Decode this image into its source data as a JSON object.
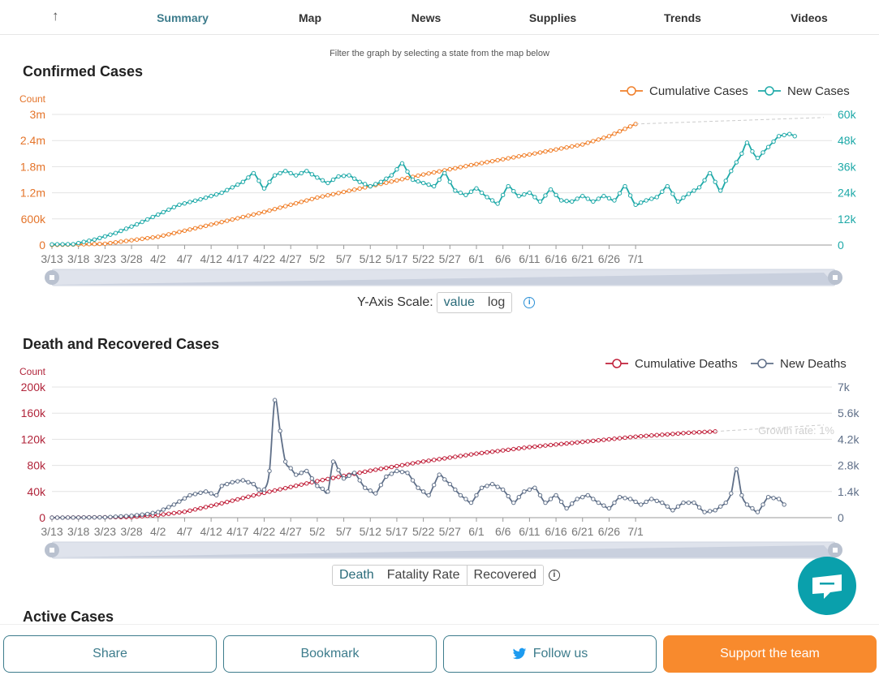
{
  "nav": {
    "back_icon": "arrow-up-icon",
    "tabs": [
      {
        "label": "Summary",
        "active": true
      },
      {
        "label": "Map",
        "active": false
      },
      {
        "label": "News",
        "active": false
      },
      {
        "label": "Supplies",
        "active": false
      },
      {
        "label": "Trends",
        "active": false
      },
      {
        "label": "Videos",
        "active": false
      }
    ]
  },
  "hint": "Filter the graph by selecting a state from the map below",
  "sections": {
    "confirmed_title": "Confirmed Cases",
    "death_title": "Death and Recovered Cases",
    "active_title": "Active Cases"
  },
  "controls": {
    "yscale_label": "Y-Axis Scale:",
    "yscale_options": [
      "value",
      "log"
    ],
    "yscale_selected": "value",
    "death_options": [
      "Death",
      "Fatality Rate",
      "Recovered"
    ],
    "death_selected": "Death"
  },
  "bottom": {
    "share": "Share",
    "bookmark": "Bookmark",
    "follow": "Follow us",
    "support": "Support the team"
  },
  "colors": {
    "cumulative_cases": "#f07f2a",
    "new_cases": "#1ea9a8",
    "cumulative_deaths": "#c0203a",
    "new_deaths": "#5f6f88",
    "accent": "#3d7c8c",
    "support": "#f88a2d"
  },
  "chart_data": [
    {
      "type": "line",
      "unit_label": "Count",
      "x_tick_labels": [
        "3/13",
        "3/18",
        "3/23",
        "3/28",
        "4/2",
        "4/7",
        "4/12",
        "4/17",
        "4/22",
        "4/27",
        "5/2",
        "5/7",
        "5/12",
        "5/17",
        "5/22",
        "5/27",
        "6/1",
        "6/6",
        "6/11",
        "6/16",
        "6/21",
        "6/26",
        "7/1"
      ],
      "y_left_ticks": [
        "0",
        "600k",
        "1.2m",
        "1.8m",
        "2.4m",
        "3m"
      ],
      "y_right_ticks": [
        "0",
        "12k",
        "24k",
        "36k",
        "48k",
        "60k"
      ],
      "ylim_left": [
        0,
        3000000
      ],
      "ylim_right": [
        0,
        60000
      ],
      "legend_position": "top-right",
      "series": [
        {
          "name": "Cumulative Cases",
          "axis": "left",
          "anchors": [
            [
              0,
              2000
            ],
            [
              10,
              30000
            ],
            [
              20,
              190000
            ],
            [
              30,
              470000
            ],
            [
              40,
              760000
            ],
            [
              50,
              1090000
            ],
            [
              60,
              1350000
            ],
            [
              70,
              1620000
            ],
            [
              80,
              1860000
            ],
            [
              90,
              2080000
            ],
            [
              100,
              2310000
            ],
            [
              105,
              2500000
            ],
            [
              110,
              2780000
            ]
          ]
        },
        {
          "name": "New Cases",
          "axis": "right",
          "anchors": [
            [
              0,
              300
            ],
            [
              4,
              400
            ],
            [
              8,
              2500
            ],
            [
              12,
              5500
            ],
            [
              16,
              9500
            ],
            [
              20,
              14000
            ],
            [
              24,
              18500
            ],
            [
              28,
              21000
            ],
            [
              32,
              24000
            ],
            [
              36,
              29000
            ],
            [
              38,
              33000
            ],
            [
              40,
              26000
            ],
            [
              42,
              32000
            ],
            [
              44,
              34000
            ],
            [
              46,
              32000
            ],
            [
              48,
              34000
            ],
            [
              50,
              31000
            ],
            [
              52,
              28500
            ],
            [
              54,
              31500
            ],
            [
              56,
              32000
            ],
            [
              58,
              29000
            ],
            [
              60,
              27000
            ],
            [
              62,
              29000
            ],
            [
              64,
              32000
            ],
            [
              66,
              37500
            ],
            [
              68,
              30000
            ],
            [
              70,
              28500
            ],
            [
              72,
              27000
            ],
            [
              74,
              33000
            ],
            [
              76,
              25000
            ],
            [
              78,
              23000
            ],
            [
              80,
              26000
            ],
            [
              82,
              22000
            ],
            [
              84,
              19000
            ],
            [
              86,
              27000
            ],
            [
              88,
              22500
            ],
            [
              90,
              24000
            ],
            [
              92,
              20000
            ],
            [
              94,
              25500
            ],
            [
              96,
              20500
            ],
            [
              98,
              20000
            ],
            [
              100,
              22500
            ],
            [
              102,
              20000
            ],
            [
              104,
              22500
            ],
            [
              106,
              20500
            ],
            [
              108,
              27000
            ],
            [
              110,
              18500
            ],
            [
              112,
              20500
            ],
            [
              114,
              22000
            ],
            [
              116,
              27000
            ],
            [
              118,
              20000
            ],
            [
              120,
              23500
            ],
            [
              122,
              26500
            ],
            [
              124,
              33000
            ],
            [
              126,
              25000
            ],
            [
              128,
              34000
            ],
            [
              130,
              42000
            ],
            [
              131,
              47000
            ],
            [
              132,
              43000
            ],
            [
              133,
              40000
            ],
            [
              135,
              45000
            ],
            [
              137,
              50000
            ],
            [
              139,
              51000
            ],
            [
              140,
              50000
            ]
          ]
        }
      ]
    },
    {
      "type": "line",
      "unit_label": "Count",
      "annotation": "Growth rate: 1%",
      "x_tick_labels": [
        "3/13",
        "3/18",
        "3/23",
        "3/28",
        "4/2",
        "4/7",
        "4/12",
        "4/17",
        "4/22",
        "4/27",
        "5/2",
        "5/7",
        "5/12",
        "5/17",
        "5/22",
        "5/27",
        "6/1",
        "6/6",
        "6/11",
        "6/16",
        "6/21",
        "6/26",
        "7/1"
      ],
      "y_left_ticks": [
        "0",
        "40k",
        "80k",
        "120k",
        "160k",
        "200k"
      ],
      "y_right_ticks": [
        "0",
        "1.4k",
        "2.8k",
        "4.2k",
        "5.6k",
        "7k"
      ],
      "ylim_left": [
        0,
        200000
      ],
      "ylim_right": [
        0,
        7000
      ],
      "legend_position": "top-right",
      "series": [
        {
          "name": "Cumulative Deaths",
          "axis": "left",
          "anchors": [
            [
              0,
              0
            ],
            [
              15,
              1000
            ],
            [
              20,
              4000
            ],
            [
              25,
              9000
            ],
            [
              30,
              18000
            ],
            [
              35,
              28000
            ],
            [
              40,
              38000
            ],
            [
              45,
              47000
            ],
            [
              50,
              56000
            ],
            [
              55,
              64000
            ],
            [
              60,
              72000
            ],
            [
              65,
              79000
            ],
            [
              70,
              86000
            ],
            [
              75,
              92000
            ],
            [
              80,
              98000
            ],
            [
              85,
              103000
            ],
            [
              90,
              108000
            ],
            [
              95,
              112000
            ],
            [
              100,
              116000
            ],
            [
              105,
              120000
            ],
            [
              110,
              124000
            ],
            [
              115,
              127000
            ],
            [
              120,
              130000
            ],
            [
              125,
              132000
            ]
          ]
        },
        {
          "name": "New Deaths",
          "axis": "right",
          "anchors": [
            [
              0,
              0
            ],
            [
              10,
              20
            ],
            [
              15,
              100
            ],
            [
              18,
              200
            ],
            [
              20,
              300
            ],
            [
              23,
              700
            ],
            [
              26,
              1200
            ],
            [
              29,
              1400
            ],
            [
              31,
              1200
            ],
            [
              32,
              1700
            ],
            [
              34,
              1900
            ],
            [
              36,
              2000
            ],
            [
              38,
              1800
            ],
            [
              39,
              1500
            ],
            [
              40,
              1500
            ],
            [
              41,
              2500
            ],
            [
              42,
              6300
            ],
            [
              44,
              3000
            ],
            [
              46,
              2300
            ],
            [
              48,
              2500
            ],
            [
              50,
              1700
            ],
            [
              52,
              1400
            ],
            [
              53,
              3000
            ],
            [
              55,
              2100
            ],
            [
              57,
              2400
            ],
            [
              59,
              1600
            ],
            [
              61,
              1300
            ],
            [
              63,
              2200
            ],
            [
              65,
              2500
            ],
            [
              67,
              2400
            ],
            [
              69,
              1600
            ],
            [
              71,
              1200
            ],
            [
              73,
              2300
            ],
            [
              75,
              1800
            ],
            [
              77,
              1200
            ],
            [
              79,
              800
            ],
            [
              81,
              1600
            ],
            [
              83,
              1800
            ],
            [
              85,
              1500
            ],
            [
              87,
              800
            ],
            [
              89,
              1400
            ],
            [
              91,
              1600
            ],
            [
              93,
              800
            ],
            [
              95,
              1200
            ],
            [
              97,
              500
            ],
            [
              99,
              1000
            ],
            [
              101,
              1200
            ],
            [
              103,
              800
            ],
            [
              105,
              500
            ],
            [
              107,
              1100
            ],
            [
              109,
              1000
            ],
            [
              111,
              700
            ],
            [
              113,
              1000
            ],
            [
              115,
              800
            ],
            [
              117,
              400
            ],
            [
              119,
              800
            ],
            [
              121,
              800
            ],
            [
              123,
              300
            ],
            [
              125,
              400
            ],
            [
              127,
              800
            ],
            [
              128,
              1300
            ],
            [
              129,
              2600
            ],
            [
              130,
              1200
            ],
            [
              131,
              700
            ],
            [
              133,
              300
            ],
            [
              135,
              1100
            ],
            [
              137,
              1000
            ],
            [
              138,
              700
            ]
          ]
        }
      ]
    }
  ]
}
